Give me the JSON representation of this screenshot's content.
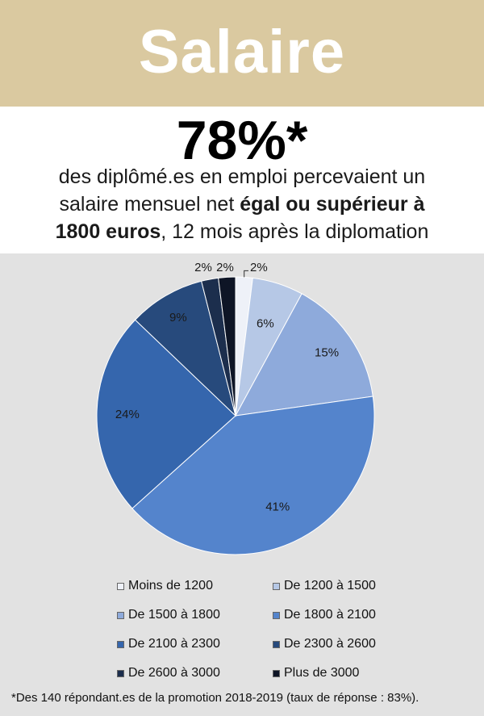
{
  "header": {
    "title": "Salaire"
  },
  "intro": {
    "stat": "78%*",
    "line1": "des diplômé.es en emploi percevaient un",
    "line2_normal": "salaire mensuel net ",
    "line2_bold": "égal ou supérieur à",
    "line3_bold": "1800 euros",
    "line3_normal": ", 12 mois après la diplomation"
  },
  "chart_data": {
    "type": "pie",
    "categories": [
      "Moins de 1200",
      "De 1200 à 1500",
      "De 1500 à 1800",
      "De 1800 à 2100",
      "De 2100 à 2300",
      "De 2300 à 2600",
      "De 2600 à 3000",
      "Plus de 3000"
    ],
    "values": [
      2,
      6,
      15,
      41,
      24,
      9,
      2,
      2
    ],
    "labels": [
      "2%",
      "6%",
      "15%",
      "41%",
      "24%",
      "9%",
      "2%",
      "2%"
    ],
    "colors": [
      "#eef1f8",
      "#b6c8e6",
      "#8eaadb",
      "#5484cc",
      "#3566ad",
      "#274a7c",
      "#1c2e4d",
      "#0e1526"
    ],
    "legend_position": "bottom"
  },
  "legend": [
    "Moins de 1200",
    "De 1200 à 1500",
    "De 1500 à 1800",
    "De 1800 à 2100",
    "De 2100 à 2300",
    "De 2300 à 2600",
    "De 2600 à 3000",
    "Plus de 3000"
  ],
  "footnote": "*Des 140 répondant.es de la promotion 2018-2019 (taux de réponse : 83%)."
}
